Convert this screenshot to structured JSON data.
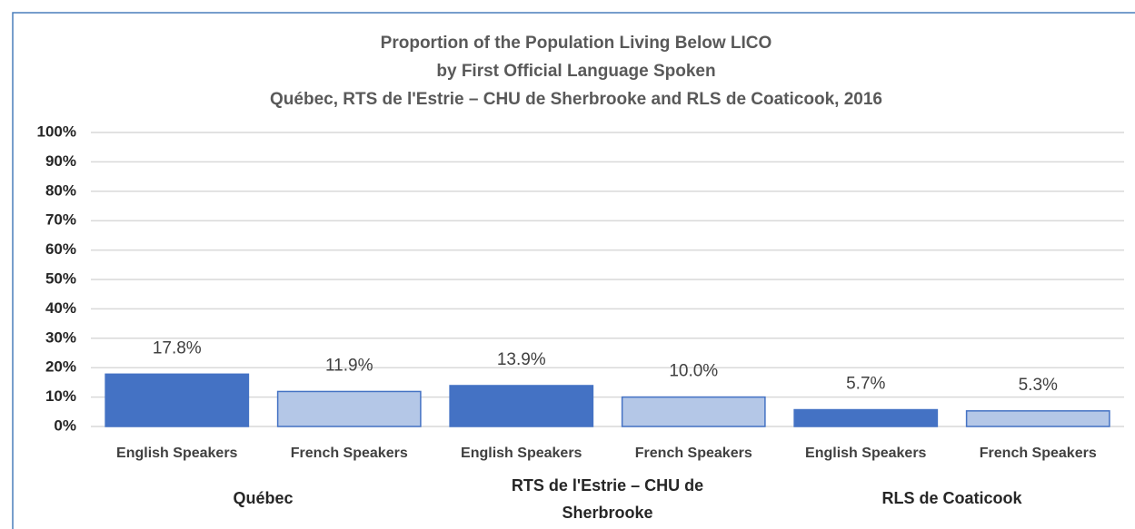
{
  "chart_data": {
    "type": "bar",
    "title": [
      "Proportion of the Population Living Below LICO",
      "by First Official Language Spoken",
      "Québec, RTS de l'Estrie – CHU de Sherbrooke and RLS de Coaticook, 2016"
    ],
    "categories": [
      "English Speakers",
      "French Speakers",
      "English Speakers",
      "French Speakers",
      "English Speakers",
      "French Speakers"
    ],
    "groups": [
      "Québec",
      "RTS de l'Estrie – CHU de Sherbrooke",
      "RLS de Coaticook"
    ],
    "values": [
      17.8,
      11.9,
      13.9,
      10.0,
      5.7,
      5.3
    ],
    "value_labels": [
      "17.8%",
      "11.9%",
      "13.9%",
      "10.0%",
      "5.7%",
      "5.3%"
    ],
    "colors": [
      "#4472c4",
      "#b4c7e7",
      "#4472c4",
      "#b4c7e7",
      "#4472c4",
      "#b4c7e7"
    ],
    "edgecolor": "#4472c4",
    "ylim": [
      0,
      100
    ],
    "yticks": [
      {
        "value": 0,
        "label": "0%"
      },
      {
        "value": 10,
        "label": "10%"
      },
      {
        "value": 20,
        "label": "20%"
      },
      {
        "value": 30,
        "label": "30%"
      },
      {
        "value": 40,
        "label": "40%"
      },
      {
        "value": 50,
        "label": "50%"
      },
      {
        "value": 60,
        "label": "60%"
      },
      {
        "value": 70,
        "label": "70%"
      },
      {
        "value": 80,
        "label": "80%"
      },
      {
        "value": 90,
        "label": "90%"
      },
      {
        "value": 100,
        "label": "100%"
      }
    ],
    "grid": true
  }
}
